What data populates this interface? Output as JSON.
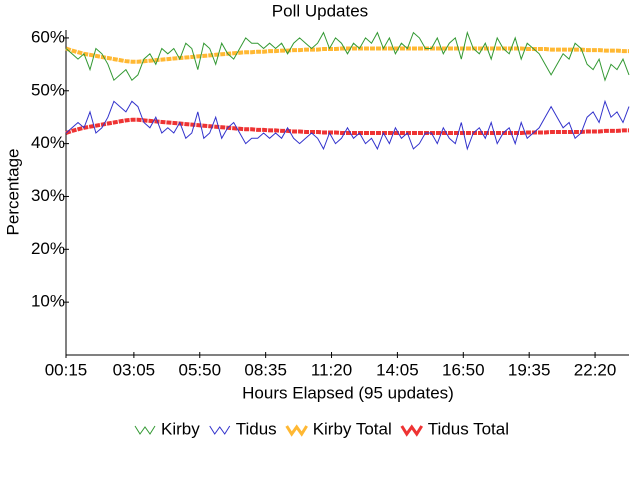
{
  "chart_data": {
    "type": "line",
    "title": "Poll Updates",
    "x_label": "Hours Elapsed (95 updates)",
    "y_label": "Percentage",
    "x": [
      15,
      30,
      45,
      60,
      75,
      90,
      105,
      120,
      135,
      150,
      165,
      180,
      195,
      210,
      225,
      240,
      255,
      270,
      285,
      300,
      315,
      330,
      345,
      360,
      375,
      390,
      405,
      420,
      435,
      450,
      465,
      480,
      495,
      510,
      525,
      540,
      555,
      570,
      585,
      600,
      615,
      630,
      645,
      660,
      675,
      690,
      705,
      720,
      735,
      750,
      765,
      780,
      795,
      810,
      825,
      840,
      855,
      870,
      885,
      900,
      915,
      930,
      945,
      960,
      975,
      990,
      1005,
      1020,
      1035,
      1050,
      1065,
      1080,
      1095,
      1110,
      1125,
      1140,
      1155,
      1170,
      1185,
      1200,
      1215,
      1230,
      1245,
      1260,
      1275,
      1290,
      1305,
      1320,
      1335,
      1350,
      1365,
      1380,
      1395,
      1410,
      1425
    ],
    "xlim": [
      15,
      1425
    ],
    "xticks": [
      {
        "value": 15,
        "label": "00:15"
      },
      {
        "value": 185,
        "label": "03:05"
      },
      {
        "value": 350,
        "label": "05:50"
      },
      {
        "value": 515,
        "label": "08:35"
      },
      {
        "value": 680,
        "label": "11:20"
      },
      {
        "value": 845,
        "label": "14:05"
      },
      {
        "value": 1010,
        "label": "16:50"
      },
      {
        "value": 1175,
        "label": "19:35"
      },
      {
        "value": 1340,
        "label": "22:20"
      }
    ],
    "ylim": [
      0,
      61.5
    ],
    "yticks": [
      {
        "value": 10,
        "label": "10%"
      },
      {
        "value": 20,
        "label": "20%"
      },
      {
        "value": 30,
        "label": "30%"
      },
      {
        "value": 40,
        "label": "40%"
      },
      {
        "value": 50,
        "label": "50%"
      },
      {
        "value": 60,
        "label": "60%"
      }
    ],
    "legend": "bottom",
    "series": [
      {
        "name": "Kirby",
        "color": "#339933",
        "width": 1,
        "values": [
          58,
          57,
          56,
          57,
          54,
          58,
          57,
          55,
          52,
          53,
          54,
          52,
          53,
          56,
          57,
          55,
          58,
          57,
          58,
          56,
          59,
          58,
          54,
          59,
          58,
          55,
          59,
          57,
          56,
          58,
          60,
          59,
          59,
          58,
          59,
          58,
          59,
          57,
          59,
          60,
          59,
          58,
          59,
          61,
          58,
          60,
          59,
          57,
          59,
          58,
          60,
          59,
          61,
          58,
          60,
          57,
          59,
          58,
          61,
          60,
          58,
          58,
          60,
          57,
          59,
          60,
          56,
          61,
          58,
          57,
          59,
          56,
          60,
          58,
          57,
          60,
          56,
          59,
          58,
          57,
          55,
          53,
          55,
          57,
          56,
          59,
          58,
          55,
          54,
          56,
          52,
          55,
          54,
          56,
          53
        ]
      },
      {
        "name": "Tidus",
        "color": "#3333cc",
        "width": 1,
        "values": [
          42,
          43,
          44,
          43,
          46,
          42,
          43,
          45,
          48,
          47,
          46,
          48,
          47,
          44,
          43,
          45,
          42,
          43,
          42,
          44,
          41,
          42,
          46,
          41,
          42,
          45,
          41,
          43,
          44,
          42,
          40,
          41,
          41,
          42,
          41,
          42,
          41,
          43,
          41,
          40,
          41,
          42,
          41,
          39,
          42,
          40,
          41,
          43,
          41,
          42,
          40,
          41,
          39,
          42,
          40,
          43,
          41,
          42,
          39,
          40,
          42,
          42,
          40,
          43,
          41,
          40,
          44,
          39,
          42,
          43,
          41,
          44,
          40,
          42,
          43,
          40,
          44,
          41,
          42,
          43,
          45,
          47,
          45,
          43,
          44,
          41,
          42,
          45,
          46,
          44,
          48,
          45,
          46,
          44,
          47
        ]
      },
      {
        "name": "Kirby Total",
        "color": "#ffb833",
        "width": 4,
        "values": [
          58,
          57.6,
          57.3,
          57,
          56.8,
          56.6,
          56.4,
          56.2,
          56,
          55.8,
          55.6,
          55.5,
          55.5,
          55.6,
          55.7,
          55.8,
          55.9,
          56,
          56.1,
          56.2,
          56.3,
          56.4,
          56.5,
          56.6,
          56.7,
          56.8,
          56.9,
          57,
          57.1,
          57.2,
          57.3,
          57.3,
          57.4,
          57.4,
          57.5,
          57.5,
          57.6,
          57.6,
          57.7,
          57.7,
          57.8,
          57.8,
          57.8,
          57.9,
          57.9,
          57.9,
          58,
          58,
          58,
          58,
          58,
          58,
          58,
          58,
          58,
          58,
          58,
          58,
          58,
          58,
          58,
          58,
          58,
          58,
          58,
          58,
          58,
          58,
          58,
          58,
          58,
          58,
          58,
          58,
          58,
          58,
          58,
          57.9,
          57.9,
          57.9,
          57.9,
          57.8,
          57.8,
          57.8,
          57.8,
          57.8,
          57.8,
          57.7,
          57.7,
          57.7,
          57.6,
          57.6,
          57.6,
          57.5,
          57.5
        ]
      },
      {
        "name": "Tidus Total",
        "color": "#ee3333",
        "width": 4,
        "values": [
          42,
          42.4,
          42.7,
          43,
          43.2,
          43.4,
          43.6,
          43.8,
          44,
          44.2,
          44.4,
          44.5,
          44.5,
          44.4,
          44.3,
          44.2,
          44.1,
          44,
          43.9,
          43.8,
          43.7,
          43.6,
          43.5,
          43.4,
          43.3,
          43.2,
          43.1,
          43,
          42.9,
          42.8,
          42.7,
          42.7,
          42.6,
          42.6,
          42.5,
          42.5,
          42.4,
          42.4,
          42.3,
          42.3,
          42.2,
          42.2,
          42.2,
          42.1,
          42.1,
          42.1,
          42,
          42,
          42,
          42,
          42,
          42,
          42,
          42,
          42,
          42,
          42,
          42,
          42,
          42,
          42,
          42,
          42,
          42,
          42,
          42,
          42,
          42,
          42,
          42,
          42,
          42,
          42,
          42,
          42,
          42,
          42,
          42.1,
          42.1,
          42.1,
          42.1,
          42.2,
          42.2,
          42.2,
          42.2,
          42.2,
          42.2,
          42.3,
          42.3,
          42.3,
          42.4,
          42.4,
          42.4,
          42.5,
          42.5
        ]
      }
    ]
  }
}
